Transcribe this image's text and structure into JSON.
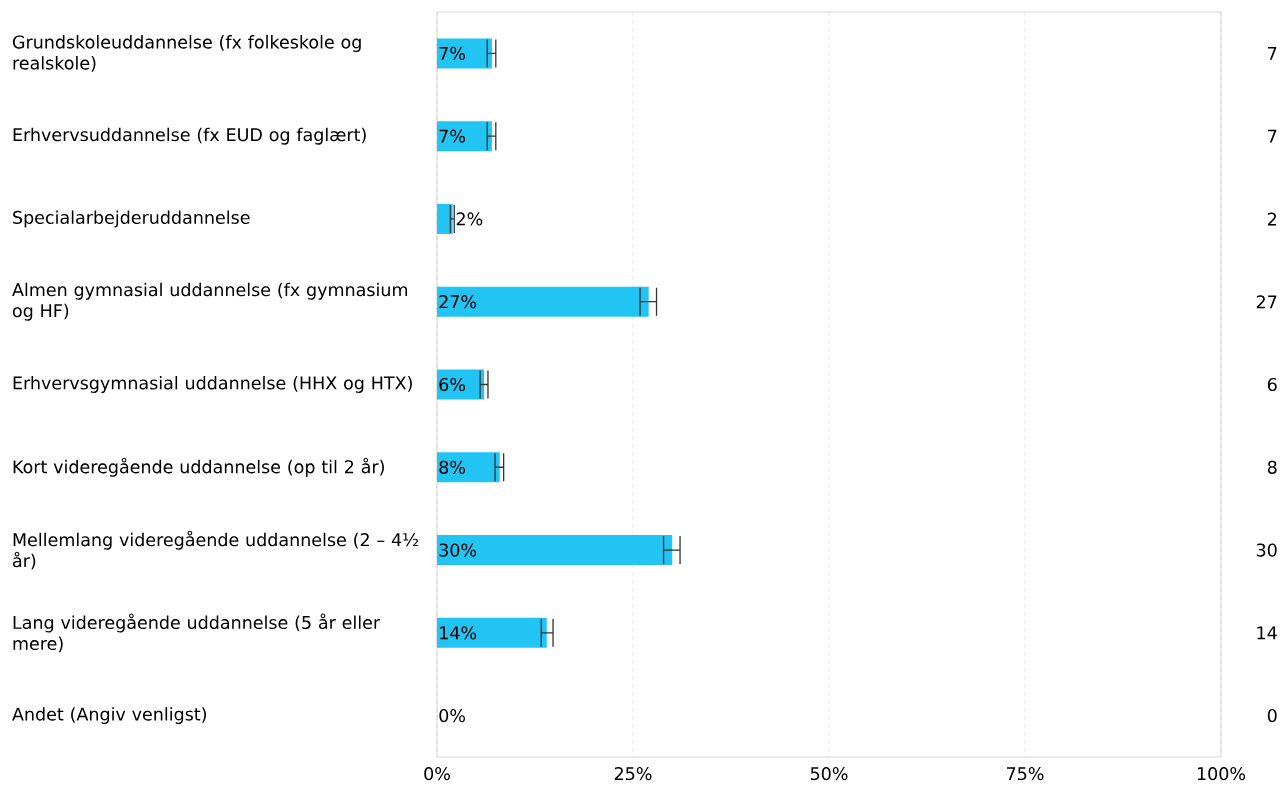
{
  "chart_data": {
    "type": "bar",
    "orientation": "horizontal",
    "categories": [
      "Grundskoleuddannelse (fx folkeskole og realskole)",
      "Erhvervsuddannelse (fx EUD og faglært)",
      "Specialarbejderuddannelse",
      "Almen gymnasial uddannelse (fx gymnasium og HF)",
      "Erhvervsgymnasial uddannelse (HHX og HTX)",
      "Kort videregående uddannelse (op til 2 år)",
      "Mellemlang videregående uddannelse (2 – 4½ år)",
      "Lang videregående uddannelse (5 år eller mere)",
      "Andet (Angiv venligst)"
    ],
    "values": [
      7,
      7,
      2,
      27,
      6,
      8,
      30,
      14,
      0
    ],
    "value_labels": [
      "7%",
      "7%",
      "2%",
      "27%",
      "6%",
      "8%",
      "30%",
      "14%",
      "0%"
    ],
    "errors": [
      [
        6.4,
        7.5
      ],
      [
        6.4,
        7.5
      ],
      [
        1.7,
        2.2
      ],
      [
        25.9,
        28.0
      ],
      [
        5.5,
        6.5
      ],
      [
        7.4,
        8.5
      ],
      [
        28.9,
        31.0
      ],
      [
        13.3,
        14.8
      ],
      null
    ],
    "color": "#21c4f3",
    "xlim": [
      0,
      100
    ],
    "xticks": [
      {
        "value": 0,
        "label": "0%"
      },
      {
        "value": 25,
        "label": "25%"
      },
      {
        "value": 50,
        "label": "50%"
      },
      {
        "value": 75,
        "label": "75%"
      },
      {
        "value": 100,
        "label": "100%"
      }
    ],
    "grid": "x",
    "annotations": [
      "7",
      "7",
      "2",
      "27",
      "6",
      "8",
      "30",
      "14",
      "0"
    ]
  }
}
